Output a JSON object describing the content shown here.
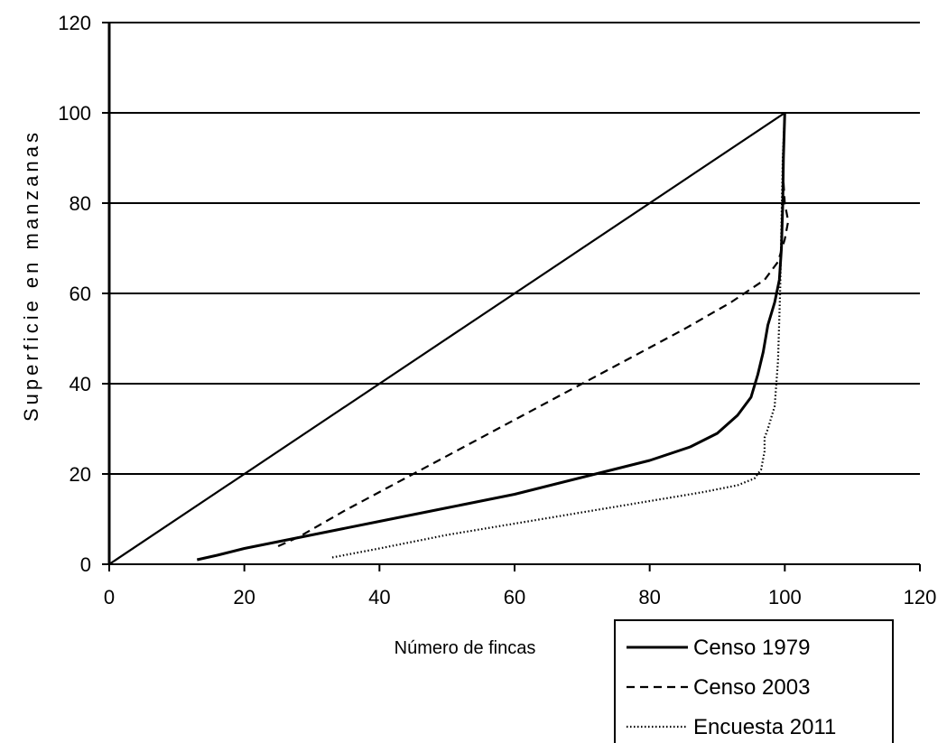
{
  "chart_data": {
    "type": "line",
    "title": "",
    "xlabel": "Número de fincas",
    "ylabel": "Superficie en manzanas",
    "xlim": [
      0,
      120
    ],
    "ylim": [
      0,
      120
    ],
    "xticks": [
      0,
      20,
      40,
      60,
      80,
      100,
      120
    ],
    "yticks": [
      0,
      20,
      40,
      60,
      80,
      100,
      120
    ],
    "horizontal_gridlines": true,
    "legend_position": "bottom-right, below plot",
    "reference_line": {
      "x": [
        0,
        100
      ],
      "y": [
        0,
        100
      ]
    },
    "series": [
      {
        "name": "Censo 1979",
        "style": "solid",
        "points": [
          [
            13,
            1
          ],
          [
            16,
            2
          ],
          [
            20,
            3.5
          ],
          [
            25,
            5
          ],
          [
            30,
            6.5
          ],
          [
            40,
            9.5
          ],
          [
            50,
            12.5
          ],
          [
            60,
            15.5
          ],
          [
            72,
            20
          ],
          [
            80,
            23
          ],
          [
            86,
            26
          ],
          [
            90,
            29
          ],
          [
            93,
            33
          ],
          [
            95,
            37
          ],
          [
            96,
            42
          ],
          [
            96.8,
            47
          ],
          [
            97.5,
            53
          ],
          [
            98.5,
            58
          ],
          [
            99.2,
            63
          ],
          [
            99.5,
            70
          ],
          [
            99.7,
            80
          ],
          [
            99.8,
            90
          ],
          [
            100,
            100
          ]
        ]
      },
      {
        "name": "Censo 2003",
        "style": "dashed",
        "points": [
          [
            25,
            4
          ],
          [
            28,
            6
          ],
          [
            35,
            12
          ],
          [
            45,
            20
          ],
          [
            55,
            28
          ],
          [
            65,
            36
          ],
          [
            75,
            44
          ],
          [
            85,
            52
          ],
          [
            92,
            58
          ],
          [
            97,
            63
          ],
          [
            99,
            67
          ],
          [
            100,
            72
          ],
          [
            100.5,
            76
          ],
          [
            100,
            80
          ],
          [
            99.8,
            85
          ],
          [
            99.8,
            90
          ],
          [
            100,
            100
          ]
        ]
      },
      {
        "name": "Encuesta 2011",
        "style": "dotted",
        "points": [
          [
            33,
            1.5
          ],
          [
            40,
            3.5
          ],
          [
            50,
            6.5
          ],
          [
            60,
            9
          ],
          [
            70,
            11.5
          ],
          [
            80,
            14
          ],
          [
            88,
            16
          ],
          [
            93,
            17.5
          ],
          [
            95.5,
            19
          ],
          [
            96.5,
            21
          ],
          [
            97,
            25
          ],
          [
            97,
            28
          ],
          [
            97.5,
            30
          ],
          [
            98.5,
            35
          ],
          [
            99,
            45
          ],
          [
            99.3,
            60
          ],
          [
            99.5,
            75
          ],
          [
            99.7,
            90
          ],
          [
            100,
            100
          ]
        ]
      }
    ]
  }
}
